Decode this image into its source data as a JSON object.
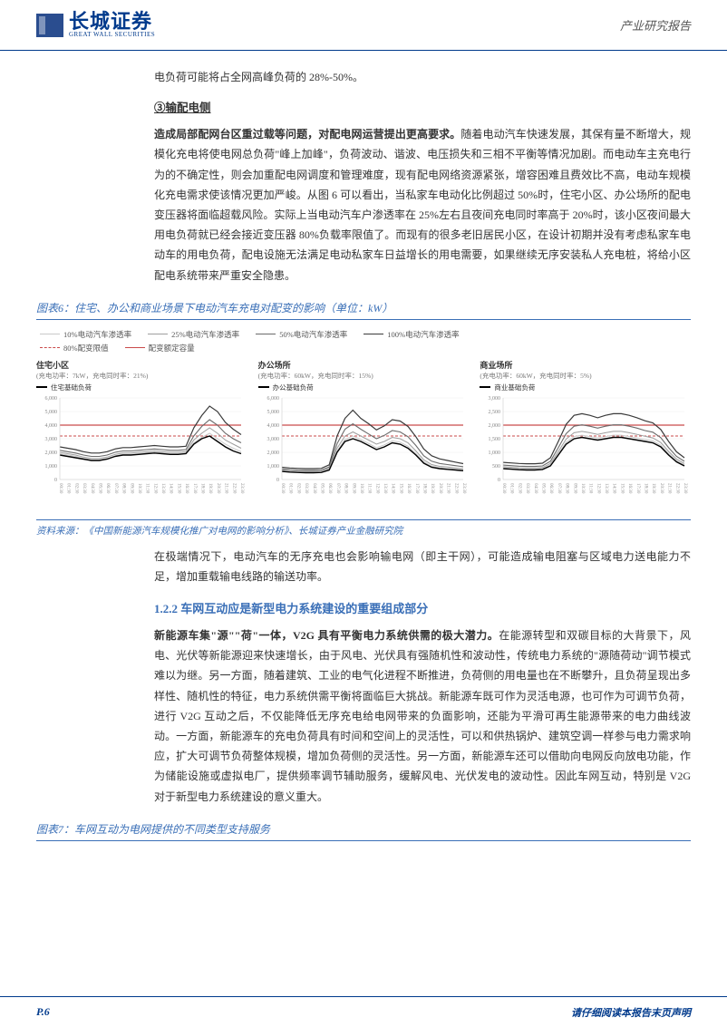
{
  "header": {
    "logo_cn": "长城证券",
    "logo_en": "GREAT WALL SECURITIES",
    "right": "产业研究报告"
  },
  "para1": "电负荷可能将占全网高峰负荷的 28%-50%。",
  "sec3": "③输配电侧",
  "para2_bold": "造成局部配网台区重过载等问题，对配电网运营提出更高要求。",
  "para2": "随着电动汽车快速发展，其保有量不断增大，规模化充电将使电网总负荷\"峰上加峰\"，负荷波动、谐波、电压损失和三相不平衡等情况加剧。而电动车主充电行为的不确定性，则会加重配电网调度和管理难度，现有配电网络资源紧张，增容困难且费效比不高，电动车规模化充电需求使该情况更加严峻。从图 6 可以看出，当私家车电动化比例超过 50%时，住宅小区、办公场所的配电变压器将面临超载风险。实际上当电动汽车户渗透率在 25%左右且夜间充电同时率高于 20%时，该小区夜间最大用电负荷就已经会接近变压器 80%负载率限值了。而现有的很多老旧居民小区，在设计初期并没有考虑私家车电动车的用电负荷，配电设施无法满足电动私家车日益增长的用电需要，如果继续无序安装私人充电桩，将给小区配电系统带来严重安全隐患。",
  "fig6_title": "图表6：住宅、办公和商业场景下电动汽车充电对配变的影响（单位：kW）",
  "legend": {
    "l1": "10%电动汽车渗透率",
    "l2": "25%电动汽车渗透率",
    "l3": "50%电动汽车渗透率",
    "l4": "100%电动汽车渗透率",
    "l5": "80%配变限值",
    "l6": "配变额定容量",
    "colors": {
      "l1": "#c9c9c9",
      "l2": "#9e9e9e",
      "l3": "#6b6b6b",
      "l4": "#3a3a3a",
      "l5": "#c94a4a",
      "l6": "#c94a4a"
    }
  },
  "charts": {
    "xticks": [
      "00:30",
      "01:30",
      "02:30",
      "03:30",
      "04:30",
      "05:30",
      "06:30",
      "07:30",
      "08:30",
      "09:30",
      "10:30",
      "11:30",
      "12:30",
      "13:30",
      "14:30",
      "15:30",
      "16:30",
      "17:30",
      "18:30",
      "19:30",
      "20:30",
      "21:30",
      "22:30",
      "23:30"
    ],
    "panels": [
      {
        "title": "住宅小区",
        "sub": "(充电功率：7kW，充电同时率：21%)",
        "base_label": "住宅基础负荷",
        "ylim": [
          0,
          6000
        ],
        "ytick_step": 1000,
        "rated": 4000,
        "limit80": 3200,
        "base": [
          1800,
          1700,
          1600,
          1500,
          1400,
          1400,
          1500,
          1700,
          1800,
          1800,
          1850,
          1900,
          1950,
          1900,
          1850,
          1850,
          1900,
          2600,
          3000,
          3200,
          2800,
          2400,
          2100,
          1900
        ],
        "p10": [
          1900,
          1800,
          1700,
          1550,
          1450,
          1450,
          1550,
          1750,
          1850,
          1850,
          1900,
          1950,
          2000,
          1950,
          1900,
          1900,
          1950,
          2700,
          3100,
          3400,
          3000,
          2600,
          2300,
          2050
        ],
        "p25": [
          2000,
          1900,
          1800,
          1650,
          1550,
          1550,
          1650,
          1850,
          1950,
          1950,
          2000,
          2050,
          2100,
          2050,
          2000,
          2000,
          2050,
          2900,
          3400,
          3800,
          3400,
          2900,
          2600,
          2300
        ],
        "p50": [
          2150,
          2050,
          1950,
          1800,
          1700,
          1700,
          1800,
          2000,
          2100,
          2100,
          2150,
          2200,
          2250,
          2200,
          2150,
          2150,
          2200,
          3200,
          3900,
          4400,
          4000,
          3400,
          3000,
          2700
        ],
        "p100": [
          2400,
          2300,
          2200,
          2050,
          1950,
          1950,
          2050,
          2250,
          2350,
          2350,
          2400,
          2450,
          2500,
          2450,
          2400,
          2400,
          2450,
          3800,
          4700,
          5400,
          5000,
          4200,
          3700,
          3300
        ]
      },
      {
        "title": "办公场所",
        "sub": "(充电功率：60kW，充电同时率：15%)",
        "base_label": "办公基础负荷",
        "ylim": [
          0,
          6000
        ],
        "ytick_step": 1000,
        "rated": 4000,
        "limit80": 3200,
        "base": [
          600,
          550,
          520,
          500,
          500,
          520,
          700,
          2000,
          2800,
          3000,
          2800,
          2500,
          2200,
          2400,
          2700,
          2600,
          2300,
          1800,
          1200,
          900,
          800,
          750,
          700,
          650
        ],
        "p10": [
          650,
          600,
          570,
          550,
          550,
          570,
          750,
          2100,
          2950,
          3200,
          2950,
          2650,
          2350,
          2550,
          2850,
          2750,
          2450,
          1900,
          1300,
          980,
          870,
          820,
          760,
          710
        ],
        "p25": [
          700,
          650,
          620,
          600,
          600,
          620,
          820,
          2300,
          3200,
          3500,
          3200,
          2900,
          2600,
          2800,
          3100,
          3000,
          2700,
          2100,
          1450,
          1100,
          970,
          910,
          850,
          790
        ],
        "p50": [
          780,
          730,
          700,
          680,
          680,
          700,
          920,
          2650,
          3700,
          4100,
          3700,
          3350,
          3000,
          3250,
          3600,
          3500,
          3150,
          2500,
          1750,
          1350,
          1180,
          1100,
          1020,
          940
        ],
        "p100": [
          900,
          850,
          820,
          800,
          800,
          820,
          1080,
          3200,
          4500,
          5100,
          4500,
          4100,
          3650,
          3950,
          4400,
          4300,
          3900,
          3150,
          2250,
          1750,
          1520,
          1400,
          1280,
          1170
        ]
      },
      {
        "title": "商业场所",
        "sub": "(充电功率：60kW，充电同时率：5%)",
        "base_label": "商业基础负荷",
        "ylim": [
          0,
          3000
        ],
        "ytick_step": 500,
        "rated": 2000,
        "limit80": 1600,
        "base": [
          400,
          380,
          360,
          350,
          350,
          370,
          500,
          900,
          1300,
          1500,
          1550,
          1500,
          1450,
          1500,
          1550,
          1550,
          1500,
          1450,
          1400,
          1350,
          1200,
          900,
          650,
          500
        ],
        "p10": [
          430,
          410,
          390,
          380,
          380,
          400,
          540,
          950,
          1370,
          1580,
          1630,
          1580,
          1530,
          1580,
          1630,
          1630,
          1580,
          1530,
          1470,
          1420,
          1260,
          950,
          690,
          540
        ],
        "p25": [
          470,
          450,
          430,
          420,
          420,
          440,
          590,
          1030,
          1490,
          1720,
          1770,
          1720,
          1660,
          1720,
          1770,
          1770,
          1720,
          1660,
          1590,
          1530,
          1360,
          1030,
          750,
          590
        ],
        "p50": [
          530,
          510,
          490,
          480,
          480,
          500,
          670,
          1170,
          1690,
          1960,
          2010,
          1960,
          1890,
          1960,
          2010,
          2010,
          1960,
          1890,
          1800,
          1740,
          1540,
          1170,
          850,
          670
        ],
        "p100": [
          630,
          610,
          590,
          580,
          580,
          600,
          800,
          1400,
          2030,
          2360,
          2420,
          2360,
          2270,
          2360,
          2420,
          2420,
          2360,
          2270,
          2160,
          2080,
          1840,
          1400,
          1020,
          800
        ]
      }
    ]
  },
  "source": "资料来源：《中国新能源汽车规模化推广对电网的影响分析》、长城证券产业金融研究院",
  "para3": "在极端情况下，电动汽车的无序充电也会影响输电网（即主干网），可能造成输电阻塞与区域电力送电能力不足，增加重载输电线路的输送功率。",
  "subheading": "1.2.2 车网互动应是新型电力系统建设的重要组成部分",
  "para4_bold": "新能源车集\"源\"\"荷\"一体，V2G 具有平衡电力系统供需的极大潜力。",
  "para4": "在能源转型和双碳目标的大背景下，风电、光伏等新能源迎来快速增长，由于风电、光伏具有强随机性和波动性，传统电力系统的\"源随荷动\"调节模式难以为继。另一方面，随着建筑、工业的电气化进程不断推进，负荷侧的用电量也在不断攀升，且负荷呈现出多样性、随机性的特征，电力系统供需平衡将面临巨大挑战。新能源车既可作为灵活电源，也可作为可调节负荷，进行 V2G 互动之后，不仅能降低无序充电给电网带来的负面影响，还能为平滑可再生能源带来的电力曲线波动。一方面，新能源车的充电负荷具有时间和空间上的灵活性，可以和供热锅炉、建筑空调一样参与电力需求响应，扩大可调节负荷整体规模，增加负荷侧的灵活性。另一方面，新能源车还可以借助向电网反向放电功能，作为储能设施或虚拟电厂，提供频率调节辅助服务，缓解风电、光伏发电的波动性。因此车网互动，特别是 V2G 对于新型电力系统建设的意义重大。",
  "fig7_title": "图表7：车网互动为电网提供的不同类型支持服务",
  "footer": {
    "page": "P.6",
    "disclaimer": "请仔细阅读本报告末页声明"
  }
}
